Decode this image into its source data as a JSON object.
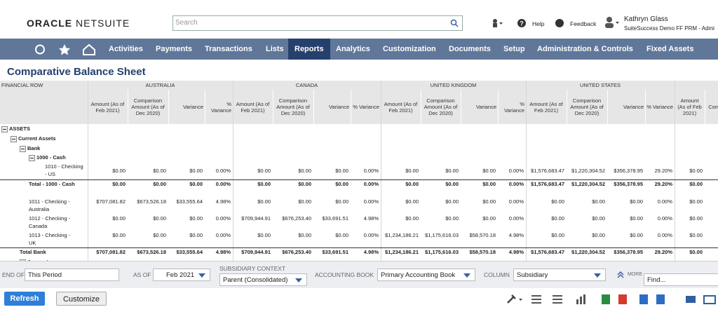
{
  "header": {
    "logo_a": "ORACLE",
    "logo_b": "NETSUITE",
    "search": "Search",
    "help": "Help",
    "feedback": "Feedback",
    "user": "Kathryn Glass",
    "role": "SuiteSuccess Demo FF PRM - Admi"
  },
  "nav": {
    "items": [
      "Activities",
      "Payments",
      "Transactions",
      "Lists",
      "Reports",
      "Analytics",
      "Customization",
      "Documents",
      "Setup",
      "Administration & Controls",
      "Fixed Assets"
    ],
    "active": "Reports"
  },
  "page": {
    "title": "Comparative Balance Sheet"
  },
  "table": {
    "row_header": "FINANCIAL ROW",
    "groups": [
      "AUSTRALIA",
      "CANADA",
      "UNITED KINGDOM",
      "UNITED STATES"
    ],
    "columns": [
      "Amount (As of Feb 2021)",
      "Comparison Amount (As of Dec 2020)",
      "Variance",
      "% Variance",
      "Amount (As of Feb 2021)",
      "Comparison Amount (As of Dec 2020)",
      "Variance",
      "% Variance",
      "Amount (As of Feb 2021)",
      "Comparison Amount (As of Dec 2020)",
      "Variance",
      "% Variance",
      "Amount (As of Feb 2021)",
      "Comparison Amount (As of Dec 2020)",
      "Variance",
      "% Variance",
      "Amount (As of Feb 2021)",
      "Com Am of D"
    ],
    "rows": [
      {
        "label": "ASSETS",
        "level": 0,
        "bold": true,
        "toggle": true
      },
      {
        "label": "Current Assets",
        "level": 1,
        "bold": true,
        "toggle": true
      },
      {
        "label": "Bank",
        "level": 2,
        "bold": true,
        "toggle": true
      },
      {
        "label": "1000 - Cash",
        "level": 3,
        "bold": true,
        "toggle": true
      },
      {
        "label": "1010 - Checking - US",
        "level": 4,
        "values": [
          "$0.00",
          "$0.00",
          "$0.00",
          "0.00%",
          "$0.00",
          "$0.00",
          "$0.00",
          "0.00%",
          "$0.00",
          "$0.00",
          "$0.00",
          "0.00%",
          "$1,576,683.47",
          "$1,220,304.52",
          "$356,378.95",
          "29.20%",
          "$0.00"
        ]
      },
      {
        "label": "Total - 1000 - Cash",
        "level": 3,
        "bold": true,
        "total": true,
        "values": [
          "$0.00",
          "$0.00",
          "$0.00",
          "0.00%",
          "$0.00",
          "$0.00",
          "$0.00",
          "0.00%",
          "$0.00",
          "$0.00",
          "$0.00",
          "0.00%",
          "$1,576,683.47",
          "$1,220,304.52",
          "$356,378.95",
          "29.20%",
          "$0.00"
        ]
      },
      {
        "label": "1011 - Checking - Australia",
        "level": 3,
        "values": [
          "$707,081.82",
          "$673,526.18",
          "$33,555.64",
          "4.98%",
          "$0.00",
          "$0.00",
          "$0.00",
          "0.00%",
          "$0.00",
          "$0.00",
          "$0.00",
          "0.00%",
          "$0.00",
          "$0.00",
          "$0.00",
          "0.00%",
          "$0.00"
        ]
      },
      {
        "label": "1012 - Checking - Canada",
        "level": 3,
        "values": [
          "$0.00",
          "$0.00",
          "$0.00",
          "0.00%",
          "$709,944.91",
          "$676,253.40",
          "$33,691.51",
          "4.98%",
          "$0.00",
          "$0.00",
          "$0.00",
          "0.00%",
          "$0.00",
          "$0.00",
          "$0.00",
          "0.00%",
          "$0.00"
        ]
      },
      {
        "label": "1013 - Checking - UK",
        "level": 3,
        "values": [
          "$0.00",
          "$0.00",
          "$0.00",
          "0.00%",
          "$0.00",
          "$0.00",
          "$0.00",
          "0.00%",
          "$1,234,186.21",
          "$1,175,616.03",
          "$58,570.18",
          "4.98%",
          "$0.00",
          "$0.00",
          "$0.00",
          "0.00%",
          "$0.00"
        ]
      },
      {
        "label": "Total Bank",
        "level": 2,
        "bold": true,
        "total": true,
        "values": [
          "$707,081.82",
          "$673,526.18",
          "$33,555.64",
          "4.98%",
          "$709,944.91",
          "$676,253.40",
          "$33,691.51",
          "4.98%",
          "$1,234,186.21",
          "$1,175,616.03",
          "$58,570.18",
          "4.98%",
          "$1,576,683.47",
          "$1,220,304.52",
          "$356,378.95",
          "29.20%",
          "$0.00"
        ]
      },
      {
        "label": "Accounts Receivable",
        "level": 2,
        "bold": true,
        "toggle": true
      }
    ]
  },
  "filters": {
    "end_of_label": "END OF",
    "end_of": "This Period",
    "as_of_label": "AS OF",
    "as_of": "Feb 2021",
    "subsidiary_label": "SUBSIDIARY CONTEXT",
    "subsidiary": "Parent (Consolidated)",
    "book_label": "ACCOUNTING BOOK",
    "book": "Primary Accounting Book",
    "column_label": "COLUMN",
    "column": "Subsidiary",
    "more": "MORE",
    "find": "Find..."
  },
  "buttons": {
    "refresh": "Refresh",
    "customize": "Customize"
  }
}
